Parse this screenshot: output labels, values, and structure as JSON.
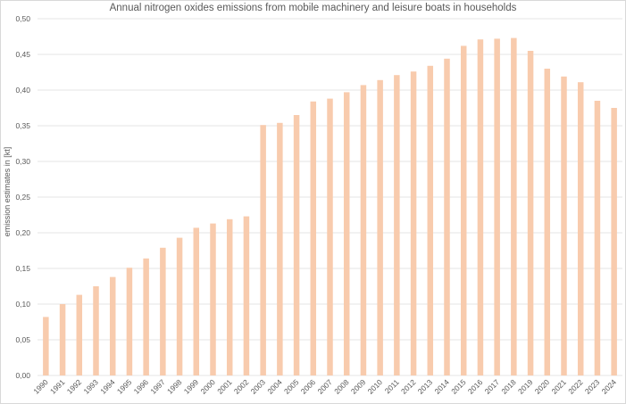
{
  "chart_data": {
    "type": "bar",
    "title": "Annual nitrogen oxides emissions from mobile machinery and leisure boats in households",
    "xlabel": "",
    "ylabel": "emission estimates in [kt]",
    "ylim": [
      0,
      0.5
    ],
    "ytick_labels": [
      "0,00",
      "0,05",
      "0,10",
      "0,15",
      "0,20",
      "0,25",
      "0,30",
      "0,35",
      "0,40",
      "0,45",
      "0,50"
    ],
    "grid": true,
    "bar_color": "#F8CBAD",
    "categories": [
      "1990",
      "1991",
      "1992",
      "1993",
      "1994",
      "1995",
      "1996",
      "1997",
      "1998",
      "1999",
      "2000",
      "2001",
      "2002",
      "2003",
      "2004",
      "2005",
      "2006",
      "2007",
      "2008",
      "2009",
      "2010",
      "2011",
      "2012",
      "2013",
      "2014",
      "2015",
      "2016",
      "2017",
      "2018",
      "2019",
      "2020",
      "2021",
      "2022",
      "2023",
      "2024"
    ],
    "values": [
      0.082,
      0.1,
      0.113,
      0.125,
      0.138,
      0.151,
      0.164,
      0.179,
      0.193,
      0.207,
      0.213,
      0.219,
      0.223,
      0.351,
      0.354,
      0.365,
      0.384,
      0.388,
      0.397,
      0.407,
      0.414,
      0.421,
      0.426,
      0.434,
      0.444,
      0.462,
      0.471,
      0.472,
      0.473,
      0.455,
      0.43,
      0.419,
      0.411,
      0.385,
      0.375
    ]
  }
}
